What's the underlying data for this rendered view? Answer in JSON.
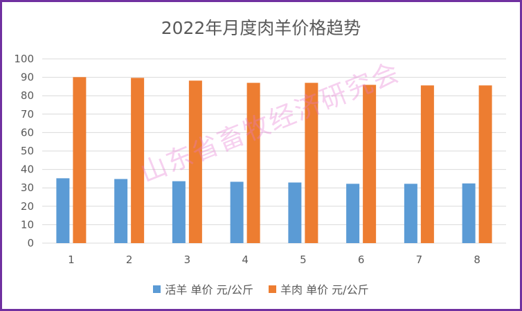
{
  "chart_data": {
    "type": "bar",
    "title": "2022年月度肉羊价格趋势",
    "categories": [
      "1",
      "2",
      "3",
      "4",
      "5",
      "6",
      "7",
      "8"
    ],
    "series": [
      {
        "name": "活羊 单价 元/公斤",
        "color": "#5b9bd5",
        "values": [
          35.2,
          34.8,
          33.6,
          33.3,
          32.9,
          32.2,
          32.2,
          32.4
        ]
      },
      {
        "name": "羊肉 单价 元/公斤",
        "color": "#ed7d31",
        "values": [
          90.1,
          89.7,
          88.2,
          87.0,
          87.0,
          85.9,
          85.6,
          85.6
        ]
      }
    ],
    "yticks": [
      "0",
      "10",
      "20",
      "30",
      "40",
      "50",
      "60",
      "70",
      "80",
      "90",
      "100"
    ],
    "ylim": [
      0,
      100
    ],
    "grid": true,
    "legend_position": "bottom"
  },
  "watermark": "山东省畜牧经济研究会"
}
